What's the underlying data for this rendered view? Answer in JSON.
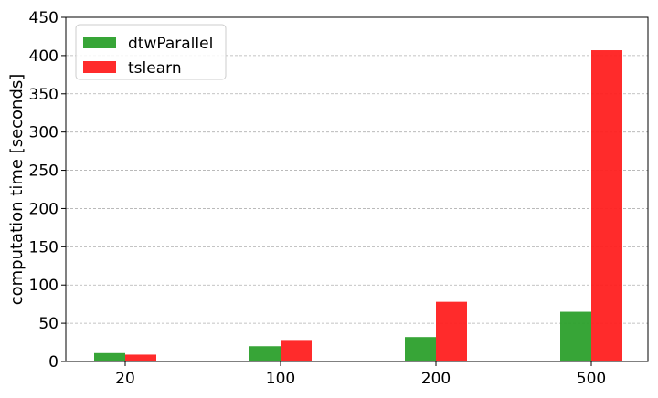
{
  "chart_data": {
    "type": "bar",
    "title": "",
    "xlabel": "",
    "ylabel": "computation time [seconds]",
    "categories": [
      "20",
      "100",
      "200",
      "500"
    ],
    "series": [
      {
        "name": "dtwParallel",
        "values": [
          11,
          20,
          32,
          65
        ],
        "color": "#2ca02c"
      },
      {
        "name": "tslearn",
        "values": [
          9,
          27,
          78,
          407
        ],
        "color": "#ff2020"
      }
    ],
    "ylim": [
      0,
      450
    ],
    "yticks": [
      0,
      50,
      100,
      150,
      200,
      250,
      300,
      350,
      400,
      450
    ],
    "grid": "y-dashed",
    "legend_position": "top-left"
  }
}
